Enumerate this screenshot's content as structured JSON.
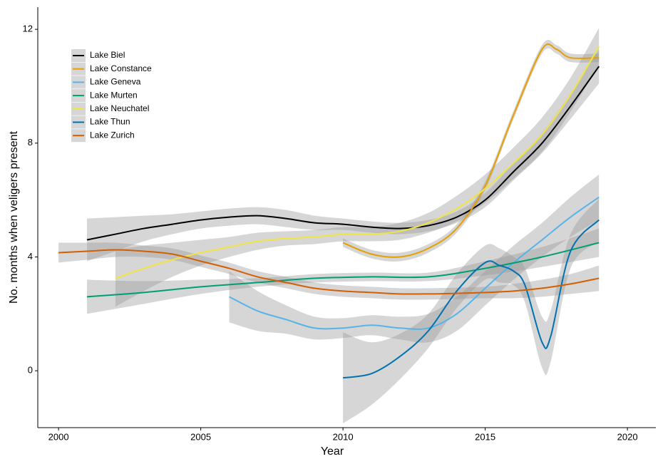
{
  "chart_data": {
    "type": "line",
    "x_label": "Year",
    "y_label": "No. months when veligers present",
    "xlim": [
      1999.27,
      2021.0
    ],
    "ylim": [
      -2.0,
      12.78
    ],
    "xticks": [
      2000,
      2005,
      2010,
      2015,
      2020
    ],
    "yticks": [
      0,
      4,
      8,
      12
    ],
    "grid": false,
    "legend": "top-left",
    "band_color": "#999999",
    "series": [
      {
        "name": "Lake Biel",
        "color": "#000000",
        "x": [
          2001,
          2002,
          2003,
          2004,
          2005,
          2006,
          2007,
          2008,
          2009,
          2010,
          2011,
          2012,
          2013,
          2014,
          2015,
          2016,
          2017,
          2018,
          2019
        ],
        "values": [
          4.6,
          4.8,
          5.0,
          5.15,
          5.3,
          5.4,
          5.45,
          5.35,
          5.2,
          5.15,
          5.05,
          5.0,
          5.1,
          5.4,
          6.0,
          7.0,
          8.0,
          9.3,
          10.7
        ],
        "lower": [
          3.85,
          4.2,
          4.55,
          4.8,
          5.0,
          5.1,
          5.15,
          5.05,
          4.95,
          4.95,
          4.85,
          4.8,
          4.9,
          5.2,
          5.75,
          6.7,
          7.65,
          8.85,
          10.1
        ],
        "upper": [
          5.35,
          5.4,
          5.45,
          5.5,
          5.6,
          5.7,
          5.75,
          5.65,
          5.45,
          5.35,
          5.25,
          5.2,
          5.3,
          5.6,
          6.25,
          7.3,
          8.35,
          9.75,
          11.3
        ]
      },
      {
        "name": "Lake Constance",
        "color": "#E69F00",
        "x": [
          2010,
          2011,
          2012,
          2013,
          2014,
          2015,
          2016,
          2017,
          2017.5,
          2018,
          2019
        ],
        "values": [
          4.5,
          4.1,
          4.0,
          4.3,
          5.0,
          6.5,
          9.0,
          11.3,
          11.3,
          11.0,
          11.0
        ],
        "lower": [
          4.35,
          3.95,
          3.85,
          4.15,
          4.85,
          6.35,
          8.85,
          11.15,
          11.15,
          10.85,
          10.85
        ],
        "upper": [
          4.65,
          4.25,
          4.15,
          4.45,
          5.15,
          6.65,
          9.15,
          11.45,
          11.45,
          11.15,
          11.15
        ]
      },
      {
        "name": "Lake Geneva",
        "color": "#56B4E9",
        "x": [
          2006,
          2007,
          2008,
          2009,
          2010,
          2011,
          2012,
          2013,
          2014,
          2015,
          2016,
          2017,
          2018,
          2019
        ],
        "values": [
          2.6,
          2.1,
          1.8,
          1.5,
          1.5,
          1.6,
          1.5,
          1.5,
          2.0,
          2.9,
          3.8,
          4.6,
          5.4,
          6.1
        ],
        "lower": [
          1.7,
          1.4,
          1.3,
          1.1,
          1.15,
          1.25,
          1.1,
          1.0,
          1.4,
          2.3,
          3.2,
          4.0,
          4.7,
          5.3
        ],
        "upper": [
          3.5,
          2.8,
          2.3,
          1.9,
          1.85,
          1.95,
          1.9,
          2.0,
          2.6,
          3.5,
          4.4,
          5.2,
          6.1,
          6.9
        ]
      },
      {
        "name": "Lake Murten",
        "color": "#009E73",
        "x": [
          2001,
          2003,
          2005,
          2007,
          2009,
          2011,
          2013,
          2015,
          2017,
          2019
        ],
        "values": [
          2.6,
          2.75,
          2.95,
          3.1,
          3.25,
          3.3,
          3.3,
          3.6,
          4.0,
          4.5
        ],
        "lower": [
          2.0,
          2.35,
          2.7,
          2.95,
          3.1,
          3.15,
          3.15,
          3.35,
          3.65,
          4.0
        ],
        "upper": [
          3.2,
          3.15,
          3.2,
          3.25,
          3.4,
          3.45,
          3.45,
          3.85,
          4.35,
          5.0
        ]
      },
      {
        "name": "Lake Neuchatel",
        "color": "#F0E442",
        "x": [
          2002,
          2003,
          2004,
          2005,
          2006,
          2007,
          2008,
          2009,
          2010,
          2011,
          2012,
          2013,
          2014,
          2015,
          2016,
          2017,
          2018,
          2019
        ],
        "values": [
          3.25,
          3.6,
          3.9,
          4.15,
          4.35,
          4.55,
          4.65,
          4.7,
          4.8,
          4.8,
          4.9,
          5.2,
          5.7,
          6.4,
          7.3,
          8.3,
          9.7,
          11.4
        ],
        "lower": [
          2.25,
          2.8,
          3.3,
          3.7,
          4.0,
          4.25,
          4.4,
          4.45,
          4.55,
          4.55,
          4.6,
          4.85,
          5.25,
          5.9,
          6.75,
          7.7,
          9.1,
          10.75
        ],
        "upper": [
          4.25,
          4.4,
          4.5,
          4.6,
          4.7,
          4.85,
          4.9,
          4.95,
          5.05,
          5.05,
          5.2,
          5.55,
          6.15,
          6.9,
          7.85,
          8.9,
          10.3,
          12.05
        ]
      },
      {
        "name": "Lake Thun",
        "color": "#0072B2",
        "x": [
          2010,
          2011,
          2012,
          2013,
          2014,
          2015,
          2015.5,
          2016,
          2016.4,
          2017,
          2017.3,
          2018,
          2019
        ],
        "values": [
          -0.25,
          -0.1,
          0.5,
          1.4,
          2.8,
          3.8,
          3.7,
          3.5,
          3.0,
          1.0,
          1.2,
          4.2,
          5.3
        ],
        "lower": [
          -1.85,
          -1.2,
          -0.3,
          0.8,
          2.2,
          3.2,
          3.1,
          3.0,
          2.4,
          0.1,
          0.3,
          3.6,
          4.55
        ],
        "upper": [
          1.35,
          1.0,
          1.3,
          2.0,
          3.4,
          4.4,
          4.3,
          4.0,
          3.6,
          1.9,
          2.1,
          4.8,
          6.05
        ]
      },
      {
        "name": "Lake Zurich",
        "color": "#D55E00",
        "x": [
          2000,
          2001,
          2002,
          2003,
          2004,
          2005,
          2006,
          2007,
          2008,
          2009,
          2010,
          2011,
          2012,
          2013,
          2014,
          2015,
          2016,
          2017,
          2018,
          2019
        ],
        "values": [
          4.15,
          4.2,
          4.25,
          4.2,
          4.1,
          3.85,
          3.6,
          3.3,
          3.1,
          2.9,
          2.8,
          2.75,
          2.7,
          2.7,
          2.72,
          2.75,
          2.8,
          2.9,
          3.05,
          3.25
        ],
        "lower": [
          3.8,
          3.9,
          4.0,
          4.0,
          3.9,
          3.65,
          3.4,
          3.1,
          2.9,
          2.7,
          2.6,
          2.55,
          2.5,
          2.5,
          2.52,
          2.55,
          2.55,
          2.6,
          2.7,
          2.8
        ],
        "upper": [
          4.5,
          4.5,
          4.5,
          4.4,
          4.3,
          4.05,
          3.8,
          3.5,
          3.3,
          3.1,
          3.0,
          2.95,
          2.9,
          2.9,
          2.92,
          2.95,
          3.05,
          3.2,
          3.4,
          3.7
        ]
      }
    ]
  }
}
